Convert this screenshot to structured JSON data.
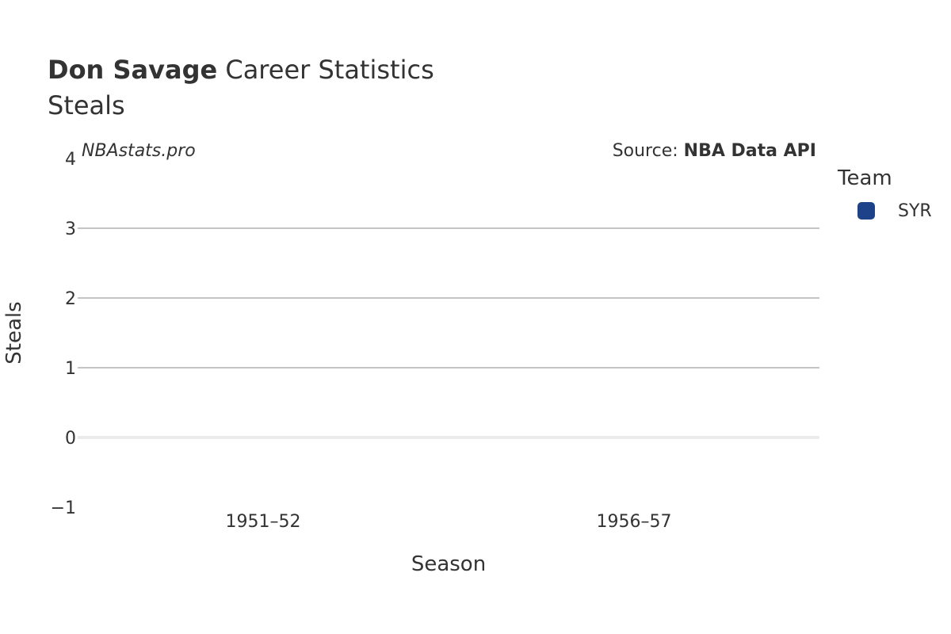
{
  "header": {
    "title_bold": "Don Savage",
    "title_rest": " Career Statistics",
    "subtitle": "Steals"
  },
  "watermark": "NBAstats.pro",
  "source": {
    "prefix": "Source: ",
    "name": "NBA Data API"
  },
  "legend": {
    "title": "Team",
    "items": [
      {
        "label": "SYR",
        "color": "#1d428a"
      }
    ]
  },
  "chart_data": {
    "type": "bar",
    "title": "Don Savage Career Statistics",
    "subtitle": "Steals",
    "xlabel": "Season",
    "ylabel": "Steals",
    "categories": [
      "1951–52",
      "1956–57"
    ],
    "series": [
      {
        "name": "SYR",
        "values": [
          null,
          null
        ],
        "color": "#1d428a"
      }
    ],
    "ylim": [
      -1,
      4
    ],
    "yticks": [
      -1,
      0,
      1,
      2,
      3,
      4
    ],
    "ytick_labels": [
      "−1",
      "0",
      "1",
      "2",
      "3",
      "4"
    ],
    "grid": true,
    "legend_position": "right"
  }
}
